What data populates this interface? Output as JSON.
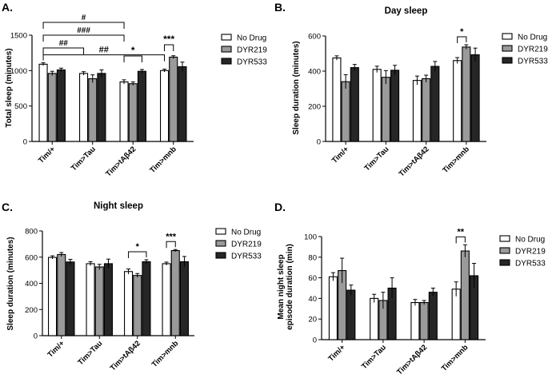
{
  "panels": [
    {
      "letter": "A."
    },
    {
      "letter": "B."
    },
    {
      "letter": "C."
    },
    {
      "letter": "D."
    }
  ],
  "colors": {
    "no_drug": "#ffffff",
    "dyr219": "#9a9a9a",
    "dyr533": "#262626",
    "stroke": "#000000"
  },
  "chart_data": [
    {
      "type": "bar",
      "title": "",
      "ylabel": "Total sleep (minutes)",
      "ylim": [
        0,
        1500
      ],
      "yticks": [
        0,
        500,
        1000,
        1500
      ],
      "categories": [
        "Tim/+",
        "Tim>Tau",
        "Tim>tAβ42",
        "Tim>mnb"
      ],
      "series": [
        {
          "name": "No Drug",
          "values": [
            1090,
            960,
            840,
            1000
          ],
          "errors": [
            20,
            25,
            30,
            20
          ]
        },
        {
          "name": "DYR219",
          "values": [
            960,
            885,
            815,
            1190
          ],
          "errors": [
            30,
            55,
            25,
            20
          ]
        },
        {
          "name": "DYR533",
          "values": [
            1010,
            960,
            990,
            1055
          ],
          "errors": [
            25,
            50,
            25,
            65
          ]
        }
      ],
      "legend": "right",
      "annotations": [
        {
          "text": "##",
          "from": [
            0,
            0
          ],
          "to": [
            3,
            0
          ],
          "level": 1
        }
      ]
    },
    {
      "type": "bar",
      "title": "Day sleep",
      "ylabel": "Sleep duration (minutes)",
      "ylim": [
        0,
        600
      ],
      "yticks": [
        0,
        200,
        400,
        600
      ],
      "categories": [
        "Tim/+",
        "Tim>Tau",
        "Tim>tAβ42",
        "Tim>mnb"
      ],
      "series": [
        {
          "name": "No Drug",
          "values": [
            475,
            410,
            347,
            460
          ],
          "errors": [
            12,
            18,
            25,
            17
          ]
        },
        {
          "name": "DYR219",
          "values": [
            340,
            365,
            357,
            537
          ],
          "errors": [
            40,
            38,
            20,
            13
          ]
        },
        {
          "name": "DYR533",
          "values": [
            420,
            405,
            427,
            493
          ],
          "errors": [
            18,
            28,
            28,
            38
          ]
        }
      ],
      "legend": "right",
      "annotations": [
        {
          "text": "*",
          "from": [
            3,
            0
          ],
          "to": [
            3,
            1
          ],
          "level": 1
        }
      ]
    },
    {
      "type": "bar",
      "title": "Night sleep",
      "ylabel": "Sleep duration (minutes)",
      "ylim": [
        0,
        800
      ],
      "yticks": [
        0,
        200,
        400,
        600,
        800
      ],
      "categories": [
        "Tim/+",
        "Tim>Tau",
        "Tim>tAβ42",
        "Tim>mnb"
      ],
      "series": [
        {
          "name": "No Drug",
          "values": [
            598,
            550,
            490,
            550
          ],
          "errors": [
            12,
            15,
            20,
            12
          ]
        },
        {
          "name": "DYR219",
          "values": [
            620,
            525,
            460,
            650
          ],
          "errors": [
            15,
            20,
            15,
            8
          ]
        },
        {
          "name": "DYR533",
          "values": [
            563,
            550,
            565,
            565
          ],
          "errors": [
            20,
            35,
            15,
            40
          ]
        }
      ],
      "legend": "right",
      "annotations": [
        {
          "text": "*",
          "from": [
            2,
            0
          ],
          "to": [
            2,
            2
          ],
          "level": 1
        },
        {
          "text": "***",
          "from": [
            3,
            0
          ],
          "to": [
            3,
            1
          ],
          "level": 1
        }
      ]
    },
    {
      "type": "bar",
      "title": "",
      "ylabel": "Mean night sleep episode duration (min)",
      "ylabel_lines": [
        "Mean night sleep",
        "episode duration (min)"
      ],
      "ylim": [
        0,
        100
      ],
      "yticks": [
        0,
        20,
        40,
        60,
        80,
        100
      ],
      "categories": [
        "Tim/+",
        "Tim>Tau",
        "Tim>tAβ42",
        "Tim>mnb"
      ],
      "series": [
        {
          "name": "No Drug",
          "values": [
            61,
            40,
            36,
            49
          ],
          "errors": [
            4,
            4,
            3,
            7
          ]
        },
        {
          "name": "DYR219",
          "values": [
            67,
            38,
            36,
            86
          ],
          "errors": [
            12,
            8,
            2,
            6
          ]
        },
        {
          "name": "DYR533",
          "values": [
            48,
            50,
            46,
            62
          ],
          "errors": [
            5,
            10,
            4,
            12
          ]
        }
      ],
      "legend": "right",
      "annotations": [
        {
          "text": "**",
          "from": [
            3,
            0
          ],
          "to": [
            3,
            1
          ],
          "level": 1
        }
      ]
    }
  ]
}
